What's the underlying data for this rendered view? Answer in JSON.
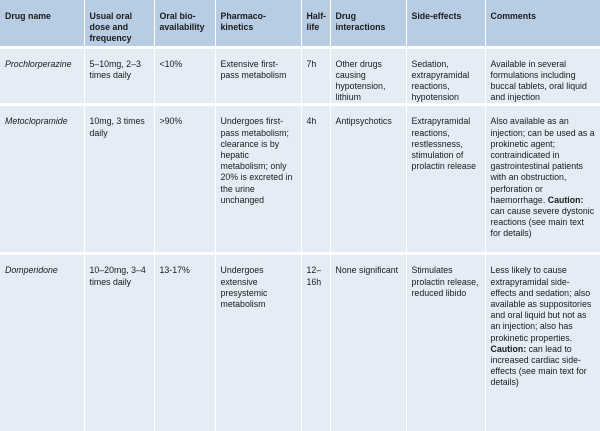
{
  "headers": [
    "Drug name",
    "Usual oral dose and frequency",
    "Oral bio-availability",
    "Pharmaco-kinetics",
    "Half-life",
    "Drug interactions",
    "Side-effects",
    "Comments"
  ],
  "rows": [
    {
      "drug_name": "Prochlorperazine",
      "dose": "5–10mg, 2–3 times daily",
      "bioavailability": "<10%",
      "pharmacokinetics": "Extensive first-pass metabolism",
      "half_life": "7h",
      "interactions": "Other drugs causing hypotension, lithium",
      "side_effects": "Sedation, extrapyramidal reactions, hypotension",
      "comments": "Available in several formulations including buccal tablets, oral liquid and injection"
    },
    {
      "drug_name": "Metoclopramide",
      "dose": "10mg, 3 times daily",
      "bioavailability": ">90%",
      "pharmacokinetics": "Undergoes first-pass metabolism; clearance is by hepatic metabolism; only 20% is excreted in the urine unchanged",
      "half_life": "4h",
      "interactions": "Antipsychotics",
      "side_effects": "Extrapyramidal reactions, restlessness, stimulation of prolactin release",
      "comments_main": "Also available as an injection; can be used as a prokinetic agent; contraindicated in gastrointestinal patients with an obstruction, perforation or haemorrhage.",
      "caution_label": "Caution:",
      "comments_caution": "can cause severe dystonic reactions (see main text for details)"
    },
    {
      "drug_name": "Domperidone",
      "dose": "10–20mg, 3–4 times daily",
      "bioavailability": "13-17%",
      "pharmacokinetics": "Undergoes extensive presystemic metabolism",
      "half_life": "12–16h",
      "interactions": "None significant",
      "side_effects": "Stimulates prolactin release, reduced libido",
      "comments_main": "Less likely to cause extrapyramidal side-effects and sedation; also available as suppositories and oral liquid but not as an injection; also has prokinetic properties.",
      "caution_label": "Caution:",
      "comments_caution": "can lead to increased cardiac side-effects (see main text for details)"
    }
  ],
  "colors": {
    "header_bg": "#b8cde4",
    "row_bg": "#e4edf6"
  }
}
